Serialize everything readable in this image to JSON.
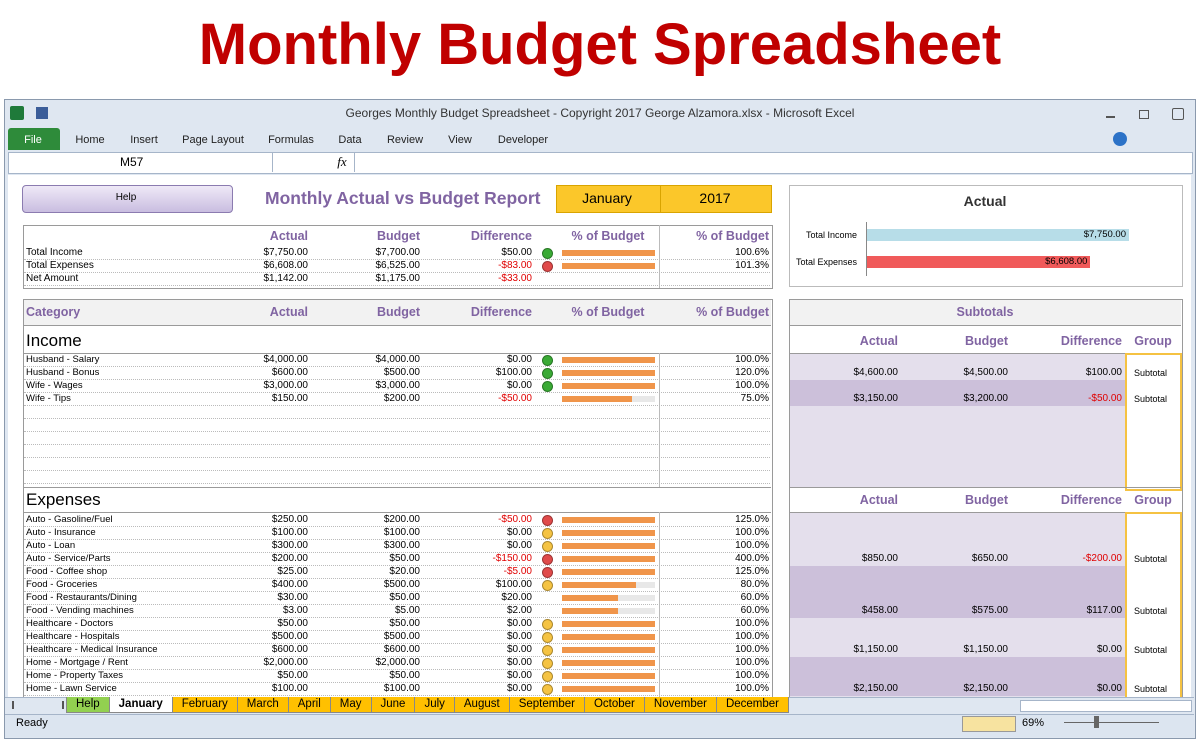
{
  "header": {
    "title": "Monthly Budget Spreadsheet"
  },
  "window": {
    "title": "Georges Monthly Budget Spreadsheet - Copyright 2017 George Alzamora.xlsx - Microsoft Excel",
    "ribbon_tabs": [
      "File",
      "Home",
      "Insert",
      "Page Layout",
      "Formulas",
      "Data",
      "Review",
      "View",
      "Developer"
    ],
    "name_box": "M57",
    "formula_icon": "fx"
  },
  "report": {
    "help_button": "Help",
    "title": "Monthly Actual vs Budget Report",
    "month": "January",
    "year": "2017"
  },
  "summary": {
    "columns": [
      "Actual",
      "Budget",
      "Difference",
      "% of Budget",
      "% of Budget"
    ],
    "rows": [
      {
        "label": "Total Income",
        "actual": "$7,750.00",
        "budget": "$7,700.00",
        "difference": "$50.00",
        "status": "#3aaa35",
        "percent": 100.6,
        "percent_label": "100.6%"
      },
      {
        "label": "Total Expenses",
        "actual": "$6,608.00",
        "budget": "$6,525.00",
        "difference": "-$83.00",
        "status": "#e04a4a",
        "percent": 101.3,
        "percent_label": "101.3%"
      },
      {
        "label": "Net Amount",
        "actual": "$1,142.00",
        "budget": "$1,175.00",
        "difference": "-$33.00"
      }
    ]
  },
  "chart_data": {
    "type": "bar",
    "orientation": "horizontal",
    "title": "Actual",
    "categories": [
      "Total Income",
      "Total Expenses"
    ],
    "values": [
      7750,
      6608
    ],
    "value_labels": [
      "$7,750.00",
      "$6,608.00"
    ],
    "colors": [
      "#b7dde8",
      "#f05a5a"
    ]
  },
  "table": {
    "columns": [
      "Category",
      "Actual",
      "Budget",
      "Difference",
      "% of Budget",
      "% of Budget"
    ],
    "subtotals_title": "Subtotals",
    "subtotal_columns": [
      "Actual",
      "Budget",
      "Difference",
      "Group"
    ],
    "sections": [
      {
        "title": "Income",
        "rows": [
          {
            "category": "Husband - Salary",
            "actual": "$4,000.00",
            "budget": "$4,000.00",
            "difference": "$0.00",
            "status": "#3aaa35",
            "percent": 100,
            "percent_label": "100.0%"
          },
          {
            "category": "Husband - Bonus",
            "actual": "$600.00",
            "budget": "$500.00",
            "difference": "$100.00",
            "status": "#3aaa35",
            "percent": 120,
            "percent_label": "120.0%"
          },
          {
            "category": "Wife - Wages",
            "actual": "$3,000.00",
            "budget": "$3,000.00",
            "difference": "$0.00",
            "status": "#3aaa35",
            "percent": 100,
            "percent_label": "100.0%"
          },
          {
            "category": "Wife - Tips",
            "actual": "$150.00",
            "budget": "$200.00",
            "difference": "-$50.00",
            "percent": 75,
            "percent_label": "75.0%"
          }
        ],
        "subtotals": [
          {
            "actual": "$4,600.00",
            "budget": "$4,500.00",
            "difference": "$100.00",
            "group": "Subtotal"
          },
          {
            "actual": "$3,150.00",
            "budget": "$3,200.00",
            "difference": "-$50.00",
            "group": "Subtotal"
          }
        ]
      },
      {
        "title": "Expenses",
        "rows": [
          {
            "category": "Auto - Gasoline/Fuel",
            "actual": "$250.00",
            "budget": "$200.00",
            "difference": "-$50.00",
            "status": "#e04a4a",
            "percent": 125,
            "percent_label": "125.0%"
          },
          {
            "category": "Auto - Insurance",
            "actual": "$100.00",
            "budget": "$100.00",
            "difference": "$0.00",
            "status": "#f5c342",
            "percent": 100,
            "percent_label": "100.0%"
          },
          {
            "category": "Auto - Loan",
            "actual": "$300.00",
            "budget": "$300.00",
            "difference": "$0.00",
            "status": "#f5c342",
            "percent": 100,
            "percent_label": "100.0%"
          },
          {
            "category": "Auto - Service/Parts",
            "actual": "$200.00",
            "budget": "$50.00",
            "difference": "-$150.00",
            "status": "#e04a4a",
            "percent": 400,
            "percent_label": "400.0%"
          },
          {
            "category": "Food - Coffee shop",
            "actual": "$25.00",
            "budget": "$20.00",
            "difference": "-$5.00",
            "status": "#e04a4a",
            "percent": 125,
            "percent_label": "125.0%"
          },
          {
            "category": "Food - Groceries",
            "actual": "$400.00",
            "budget": "$500.00",
            "difference": "$100.00",
            "status": "#f5c342",
            "percent": 80,
            "percent_label": "80.0%"
          },
          {
            "category": "Food - Restaurants/Dining",
            "actual": "$30.00",
            "budget": "$50.00",
            "difference": "$20.00",
            "percent": 60,
            "percent_label": "60.0%"
          },
          {
            "category": "Food - Vending machines",
            "actual": "$3.00",
            "budget": "$5.00",
            "difference": "$2.00",
            "percent": 60,
            "percent_label": "60.0%"
          },
          {
            "category": "Healthcare - Doctors",
            "actual": "$50.00",
            "budget": "$50.00",
            "difference": "$0.00",
            "status": "#f5c342",
            "percent": 100,
            "percent_label": "100.0%"
          },
          {
            "category": "Healthcare - Hospitals",
            "actual": "$500.00",
            "budget": "$500.00",
            "difference": "$0.00",
            "status": "#f5c342",
            "percent": 100,
            "percent_label": "100.0%"
          },
          {
            "category": "Healthcare - Medical Insurance",
            "actual": "$600.00",
            "budget": "$600.00",
            "difference": "$0.00",
            "status": "#f5c342",
            "percent": 100,
            "percent_label": "100.0%"
          },
          {
            "category": "Home - Mortgage / Rent",
            "actual": "$2,000.00",
            "budget": "$2,000.00",
            "difference": "$0.00",
            "status": "#f5c342",
            "percent": 100,
            "percent_label": "100.0%"
          },
          {
            "category": "Home - Property Taxes",
            "actual": "$50.00",
            "budget": "$50.00",
            "difference": "$0.00",
            "status": "#f5c342",
            "percent": 100,
            "percent_label": "100.0%"
          },
          {
            "category": "Home - Lawn Service",
            "actual": "$100.00",
            "budget": "$100.00",
            "difference": "$0.00",
            "status": "#f5c342",
            "percent": 100,
            "percent_label": "100.0%"
          }
        ],
        "subtotals": [
          {
            "actual": "$850.00",
            "budget": "$650.00",
            "difference": "-$200.00",
            "group": "Subtotal"
          },
          {
            "actual": "$458.00",
            "budget": "$575.00",
            "difference": "$117.00",
            "group": "Subtotal"
          },
          {
            "actual": "$1,150.00",
            "budget": "$1,150.00",
            "difference": "$0.00",
            "group": "Subtotal"
          },
          {
            "actual": "$2,150.00",
            "budget": "$2,150.00",
            "difference": "$0.00",
            "group": "Subtotal"
          }
        ]
      }
    ]
  },
  "sheet_tabs": [
    {
      "label": "Help",
      "color": "#92d050"
    },
    {
      "label": "January",
      "color": "#ffffff"
    },
    {
      "label": "February",
      "color": "#ffc000"
    },
    {
      "label": "March",
      "color": "#ffc000"
    },
    {
      "label": "April",
      "color": "#ffc000"
    },
    {
      "label": "May",
      "color": "#ffc000"
    },
    {
      "label": "June",
      "color": "#ffc000"
    },
    {
      "label": "July",
      "color": "#ffc000"
    },
    {
      "label": "August",
      "color": "#ffc000"
    },
    {
      "label": "September",
      "color": "#ffc000"
    },
    {
      "label": "October",
      "color": "#ffc000"
    },
    {
      "label": "November",
      "color": "#ffc000"
    },
    {
      "label": "December",
      "color": "#ffc000"
    }
  ],
  "status": {
    "mode": "Ready",
    "zoom": "69%"
  }
}
